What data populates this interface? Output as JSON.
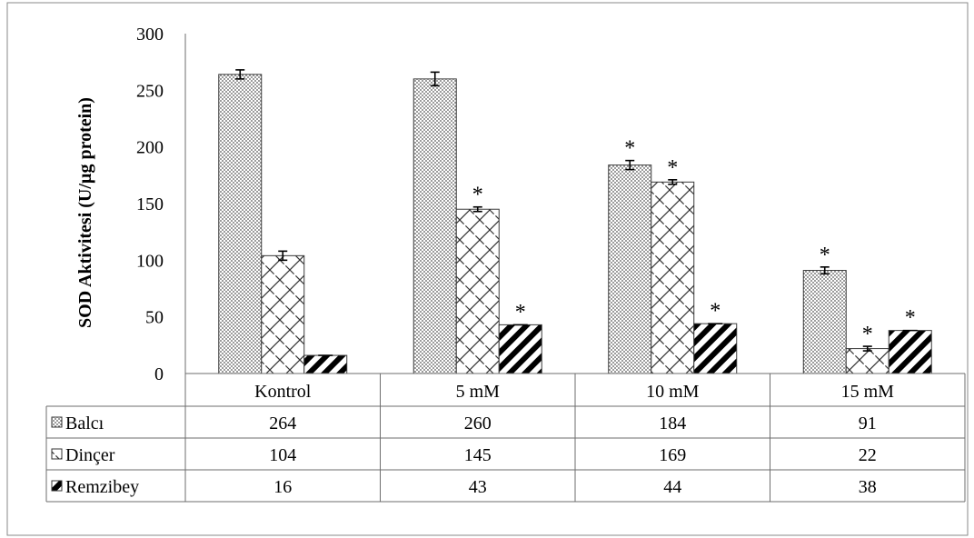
{
  "chart_data": {
    "type": "bar",
    "ylabel": "SOD Aktivitesi (U/µg protein)",
    "ylim": [
      0,
      300
    ],
    "yticks": [
      0,
      50,
      100,
      150,
      200,
      250,
      300
    ],
    "categories": [
      "Kontrol",
      "5 mM",
      "10 mM",
      "15 mM"
    ],
    "series": [
      {
        "name": "Balcı",
        "pattern": "dots",
        "values": [
          264,
          260,
          184,
          91
        ],
        "errors": [
          4,
          6,
          4,
          3
        ],
        "significant": [
          false,
          false,
          true,
          true
        ]
      },
      {
        "name": "Dinçer",
        "pattern": "diagonal-mesh",
        "values": [
          104,
          145,
          169,
          22
        ],
        "errors": [
          4,
          2,
          2,
          2
        ],
        "significant": [
          false,
          true,
          true,
          true
        ]
      },
      {
        "name": "Remzibey",
        "pattern": "thick-stripes",
        "values": [
          16,
          43,
          44,
          38
        ],
        "errors": [
          0.5,
          0.5,
          0.5,
          0.5
        ],
        "significant": [
          false,
          true,
          true,
          true
        ]
      }
    ],
    "significance_marker": "*",
    "grid": false,
    "legend": "data-table"
  }
}
